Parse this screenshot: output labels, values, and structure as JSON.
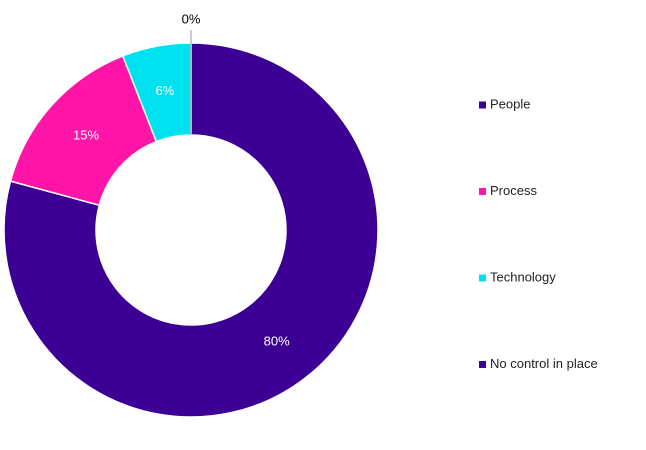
{
  "chart_data": {
    "type": "pie",
    "categories": [
      "People",
      "Process",
      "Technology",
      "No control in place"
    ],
    "values": [
      80,
      15,
      6,
      0
    ],
    "value_labels": [
      "80%",
      "15%",
      "6%",
      "0%"
    ],
    "colors": [
      "#3d0094",
      "#ff16a9",
      "#00e1ef",
      "#3d0094"
    ],
    "legend": "right"
  }
}
